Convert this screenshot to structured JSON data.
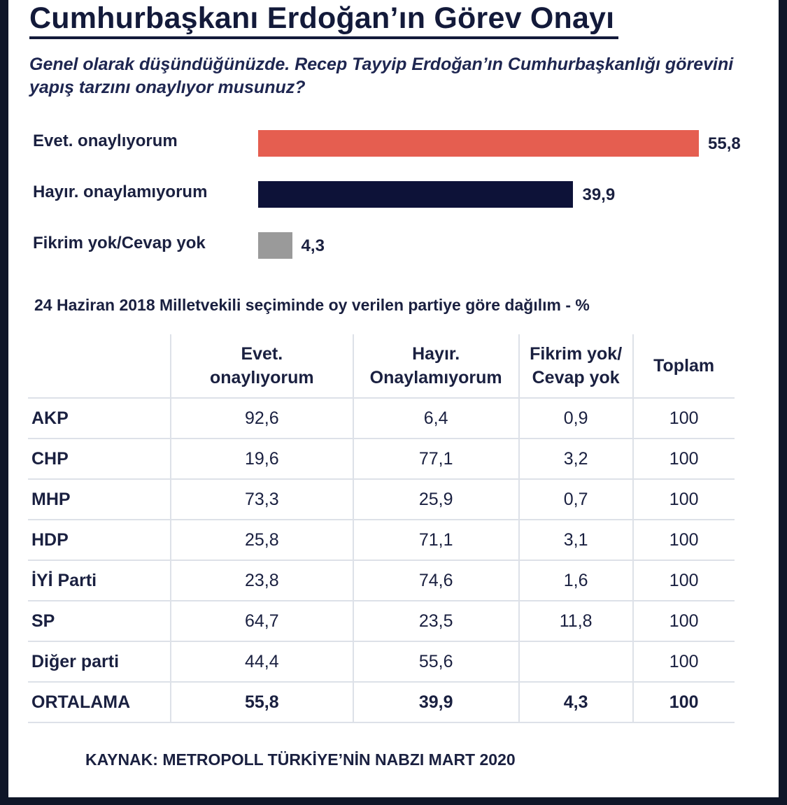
{
  "title": "Cumhurbaşkanı Erdoğan’ın Görev Onayı",
  "question": "Genel olarak düşündüğünüzde. Recep Tayyip Erdoğan’ın Cumhurbaşkanlığı görevini yapış tarzını onaylıyor musunuz?",
  "colors": {
    "yes": "#e55e50",
    "no": "#0d1238",
    "neutral": "#9a9a9a",
    "text": "#1a2040"
  },
  "chart_data": [
    {
      "type": "bar",
      "orientation": "horizontal",
      "categories": [
        "Evet. onaylıyorum",
        "Hayır. onaylamıyorum",
        "Fikrim yok/Cevap yok"
      ],
      "values": [
        55.8,
        39.9,
        4.3
      ],
      "value_labels": [
        "55,8",
        "39,9",
        "4,3"
      ],
      "xlim": [
        0,
        55.8
      ],
      "grid": false,
      "legend": "none"
    },
    {
      "type": "table",
      "title": "24 Haziran 2018 Milletvekili seçiminde oy verilen partiye göre dağılım - %",
      "columns": [
        "Evet. onaylıyorum",
        "Hayır. Onaylamıyorum",
        "Fikrim yok/ Cevap yok",
        "Toplam"
      ],
      "rows": [
        {
          "party": "AKP",
          "values": [
            "92,6",
            "6,4",
            "0,9",
            "100"
          ]
        },
        {
          "party": "CHP",
          "values": [
            "19,6",
            "77,1",
            "3,2",
            "100"
          ]
        },
        {
          "party": "MHP",
          "values": [
            "73,3",
            "25,9",
            "0,7",
            "100"
          ]
        },
        {
          "party": "HDP",
          "values": [
            "25,8",
            "71,1",
            "3,1",
            "100"
          ]
        },
        {
          "party": "İYİ Parti",
          "values": [
            "23,8",
            "74,6",
            "1,6",
            "100"
          ]
        },
        {
          "party": "SP",
          "values": [
            "64,7",
            "23,5",
            "11,8",
            "100"
          ]
        },
        {
          "party": "Diğer parti",
          "values": [
            "44,4",
            "55,6",
            "",
            "100"
          ]
        },
        {
          "party": "ORTALAMA",
          "values": [
            "55,8",
            "39,9",
            "4,3",
            "100"
          ]
        }
      ]
    }
  ],
  "source": "KAYNAK: METROPOLL TÜRKİYE’NİN NABZI MART 2020"
}
